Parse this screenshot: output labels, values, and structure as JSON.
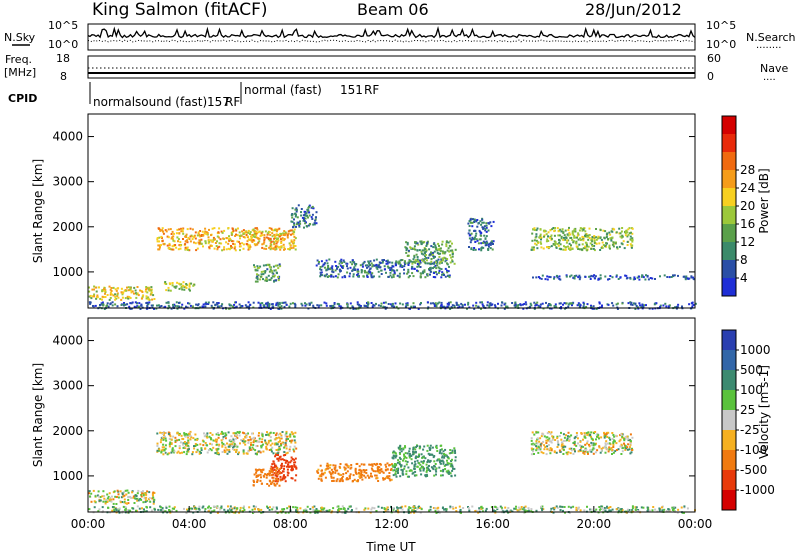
{
  "header": {
    "station": "King Salmon (fitACF)",
    "beam": "Beam 06",
    "date": "28/Jun/2012"
  },
  "noise_panel": {
    "left_label": "N.Sky",
    "right_label": "N.Search",
    "right_style_marker": "........",
    "left_ticks": [
      "10^5",
      "10^0"
    ],
    "right_ticks": [
      "10^5",
      "10^0"
    ]
  },
  "freq_panel": {
    "left_label_1": "Freq.",
    "left_label_2": "[MHz]",
    "right_label": "Nave",
    "right_style_marker": "....",
    "left_ticks": [
      "18",
      "8"
    ],
    "right_ticks": [
      "60",
      "0"
    ]
  },
  "cpid": {
    "label": "CPID",
    "segments": [
      {
        "name": "normalsound (fast)",
        "id": "157",
        "suffix": "RF",
        "start_hour": 0,
        "end_hour": 6.0
      },
      {
        "name": "normal (fast)",
        "id": "151",
        "suffix": "RF",
        "start_hour": 6.0,
        "end_hour": 24
      }
    ]
  },
  "chart_data": [
    {
      "type": "heatmap",
      "parameter": "Power",
      "ylabel": "Slant Range [km]",
      "ylim": [
        200,
        4500
      ],
      "xlim": [
        0,
        24
      ],
      "y_ticks": [
        "1000",
        "2000",
        "3000",
        "4000"
      ],
      "colorbar": {
        "label": "Power [dB]",
        "ticks": [
          "4",
          "8",
          "12",
          "16",
          "20",
          "24",
          "28"
        ],
        "colors": [
          "#1f2fd6",
          "#2a4fa6",
          "#3b8a6a",
          "#5aa04a",
          "#9cc83a",
          "#f7d020",
          "#f59c1a",
          "#f06a10",
          "#e82a0a",
          "#d40000"
        ]
      },
      "regions": [
        {
          "x": [
            0.0,
            2.6
          ],
          "y": [
            400,
            700
          ],
          "value": 16
        },
        {
          "x": [
            3.0,
            4.2
          ],
          "y": [
            600,
            800
          ],
          "value": 14
        },
        {
          "x": [
            2.7,
            8.2
          ],
          "y": [
            1500,
            2000
          ],
          "value": 18
        },
        {
          "x": [
            6.5,
            7.6
          ],
          "y": [
            800,
            1200
          ],
          "value": 10
        },
        {
          "x": [
            8.0,
            9.0
          ],
          "y": [
            2000,
            2500
          ],
          "value": 6
        },
        {
          "x": [
            9.0,
            14.3
          ],
          "y": [
            900,
            1300
          ],
          "value": 6
        },
        {
          "x": [
            12.5,
            14.5
          ],
          "y": [
            1200,
            1700
          ],
          "value": 10
        },
        {
          "x": [
            15.0,
            16.0
          ],
          "y": [
            1500,
            2200
          ],
          "value": 5
        },
        {
          "x": [
            17.5,
            21.5
          ],
          "y": [
            1500,
            2000
          ],
          "value": 12
        },
        {
          "x": [
            17.5,
            24.0
          ],
          "y": [
            850,
            950
          ],
          "value": 4
        },
        {
          "x": [
            0.0,
            24.0
          ],
          "y": [
            200,
            350
          ],
          "value": 5
        }
      ]
    },
    {
      "type": "heatmap",
      "parameter": "Velocity",
      "ylabel": "Slant Range [km]",
      "xlabel": "Time UT",
      "ylim": [
        200,
        4500
      ],
      "xlim": [
        0,
        24
      ],
      "y_ticks": [
        "1000",
        "2000",
        "3000",
        "4000"
      ],
      "x_ticks": [
        "00:00",
        "04:00",
        "08:00",
        "12:00",
        "16:00",
        "20:00",
        "00:00"
      ],
      "colorbar": {
        "label": "Velocity [m s-1]",
        "ticks": [
          "1000",
          "500",
          "100",
          "25",
          "-25",
          "-100",
          "-500",
          "-1000"
        ],
        "colors": [
          "#2a3fb0",
          "#3266a8",
          "#3c8a70",
          "#5ac23c",
          "#c8c8c8",
          "#f5b020",
          "#f07a10",
          "#e83a0a",
          "#d40000"
        ]
      },
      "regions": [
        {
          "x": [
            0.0,
            2.6
          ],
          "y": [
            400,
            700
          ],
          "value": 0
        },
        {
          "x": [
            2.7,
            8.2
          ],
          "y": [
            1500,
            2000
          ],
          "value": 0
        },
        {
          "x": [
            7.2,
            8.2
          ],
          "y": [
            900,
            1500
          ],
          "value": -800
        },
        {
          "x": [
            6.5,
            7.6
          ],
          "y": [
            800,
            1200
          ],
          "value": -300
        },
        {
          "x": [
            9.0,
            12.0
          ],
          "y": [
            900,
            1300
          ],
          "value": -200
        },
        {
          "x": [
            12.0,
            14.5
          ],
          "y": [
            1000,
            1700
          ],
          "value": 150
        },
        {
          "x": [
            17.5,
            21.5
          ],
          "y": [
            1500,
            2000
          ],
          "value": 0
        },
        {
          "x": [
            0.0,
            24.0
          ],
          "y": [
            200,
            350
          ],
          "value": 60
        }
      ]
    }
  ]
}
